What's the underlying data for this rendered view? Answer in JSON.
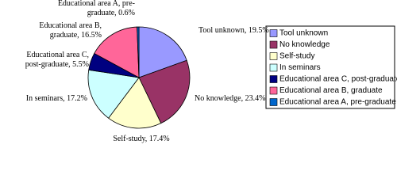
{
  "chart_data": {
    "type": "pie",
    "categories": [
      "Tool unknown",
      "No knowledge",
      "Self-study",
      "In seminars",
      "Educational area C, post-graduate",
      "Educational area B, graduate",
      "Educational area A, pre-graduate"
    ],
    "values": [
      19.5,
      23.4,
      17.4,
      17.2,
      5.5,
      16.5,
      0.6
    ],
    "value_labels": [
      "Tool unknown, 19.5%",
      "No knowledge, 23.4%",
      "Self-study, 17.4%",
      "In seminars, 17.2%",
      "Educational area C, post-graduate, 5.5%",
      "Educational area B, graduate, 16.5%",
      "Educational area A, pre-graduate, 0.6%"
    ],
    "colors": [
      "#9999ff",
      "#993366",
      "#ffffcc",
      "#ccffff",
      "#000080",
      "#ff6699",
      "#0066cc"
    ],
    "legend": "right"
  }
}
